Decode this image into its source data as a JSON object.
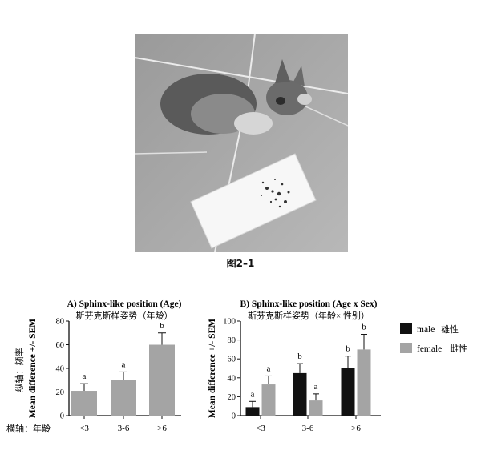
{
  "figure_caption": "图2–1",
  "photo": {
    "subject": "cat-on-tile-floor-photo"
  },
  "colors": {
    "grey_bar": "#a4a4a4",
    "black_bar": "#111111",
    "female_bar": "#a4a4a4",
    "axis": "#111111"
  },
  "chart_data": [
    {
      "type": "bar",
      "title": "A) Sphinx-like position (Age)",
      "subtitle": "斯芬克斯样姿势（年龄）",
      "ylabel": "Mean difference +/- SEM",
      "ylabel_cn": "纵轴：频率",
      "xlabel_cn": "横轴：年龄",
      "categories": [
        "<3",
        "3-6",
        ">6"
      ],
      "values": [
        21,
        30,
        60
      ],
      "errors": [
        6,
        7,
        10
      ],
      "letters": [
        "a",
        "a",
        "b"
      ],
      "ylim": [
        0,
        80
      ],
      "yticks": [
        0,
        20,
        40,
        60,
        80
      ],
      "grid": false
    },
    {
      "type": "bar",
      "title": "B) Sphinx-like position (Age x Sex)",
      "subtitle": "斯芬克斯样姿势（年龄× 性别）",
      "ylabel": "Mean difference +/- SEM",
      "categories": [
        "<3",
        "3-6",
        ">6"
      ],
      "series": [
        {
          "name": "male",
          "name_cn": "雄性",
          "values": [
            9,
            45,
            50
          ],
          "errors": [
            6,
            10,
            13
          ],
          "letters": [
            "a",
            "b",
            "b"
          ]
        },
        {
          "name": "female",
          "name_cn": "雌性",
          "values": [
            33,
            16,
            70
          ],
          "errors": [
            9,
            7,
            16
          ],
          "letters": [
            "a",
            "a",
            "b"
          ]
        }
      ],
      "ylim": [
        0,
        100
      ],
      "yticks": [
        0,
        20,
        40,
        60,
        80,
        100
      ],
      "legend": "right",
      "grid": false
    }
  ]
}
